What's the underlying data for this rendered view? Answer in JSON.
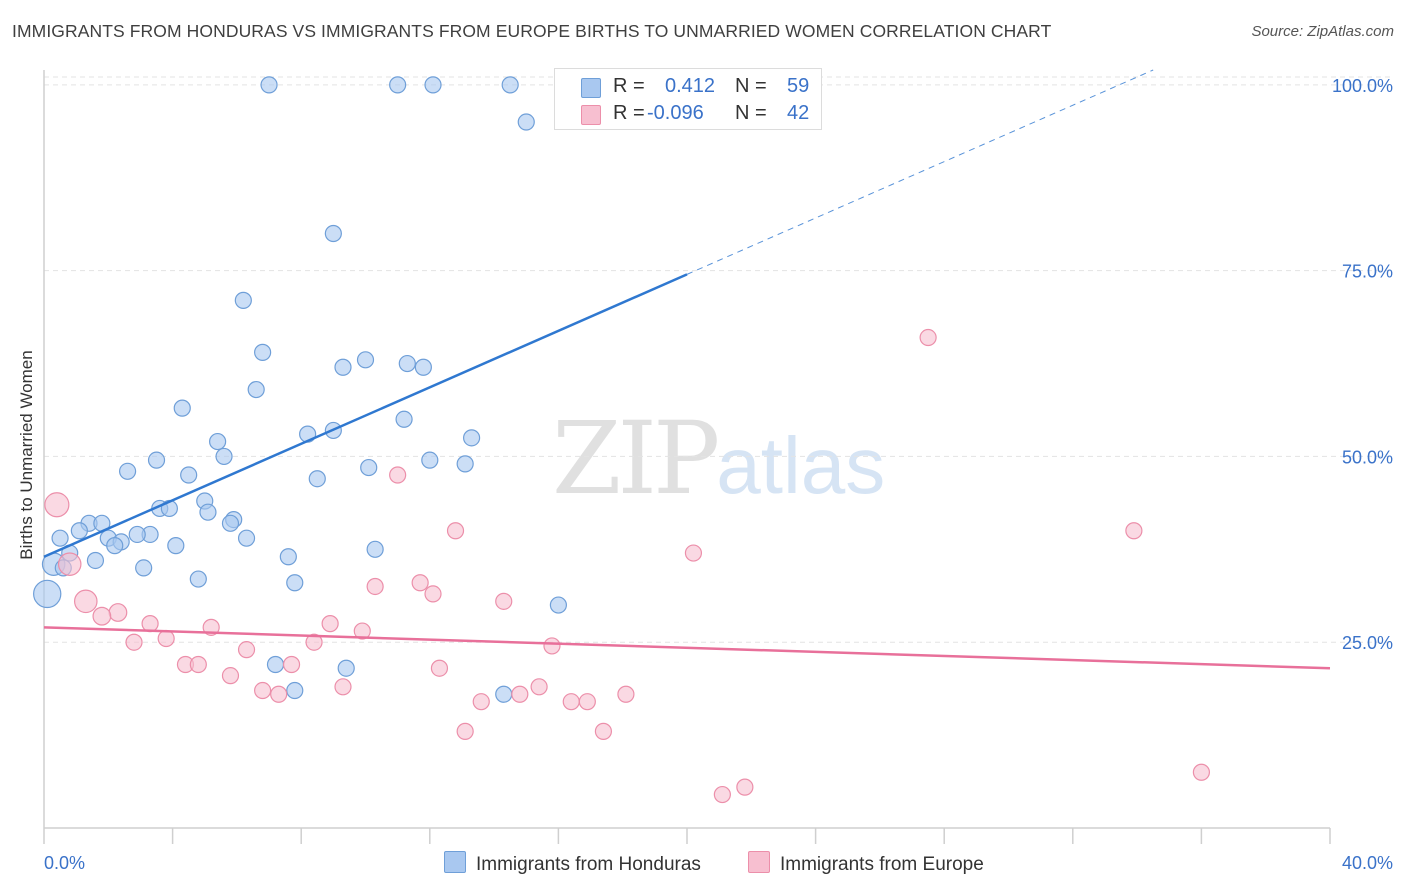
{
  "title": "IMMIGRANTS FROM HONDURAS VS IMMIGRANTS FROM EUROPE BIRTHS TO UNMARRIED WOMEN CORRELATION CHART",
  "source": "Source: ZipAtlas.com",
  "watermark": {
    "zip": "ZIP",
    "atlas": "atlas"
  },
  "legend_box": {
    "series1": {
      "r_label": "R =",
      "r_value": "0.412",
      "n_label": "N =",
      "n_value": "59"
    },
    "series2": {
      "r_label": "R =",
      "r_value": "-0.096",
      "n_label": "N =",
      "n_value": "42"
    }
  },
  "colors": {
    "honduras_fill": "#a9c8f0",
    "honduras_stroke": "#6f9fd8",
    "honduras_line": "#2f78d0",
    "europe_fill": "#f7bfd0",
    "europe_stroke": "#ec8faa",
    "europe_line": "#e8709a",
    "tick_label": "#3a72c9",
    "grid": "#e3e3e3"
  },
  "chart_data": {
    "type": "scatter",
    "title": "IMMIGRANTS FROM HONDURAS VS IMMIGRANTS FROM EUROPE BIRTHS TO UNMARRIED WOMEN CORRELATION CHART",
    "xlabel": "",
    "ylabel": "Births to Unmarried Women",
    "xlim": [
      0,
      40
    ],
    "ylim": [
      0,
      102
    ],
    "x_tick_labels": [
      "0.0%",
      "40.0%"
    ],
    "y_ticks": [
      25,
      50,
      75,
      100
    ],
    "y_tick_labels": [
      "25.0%",
      "50.0%",
      "75.0%",
      "100.0%"
    ],
    "grid": "horizontal dashed",
    "legend_position": "bottom-center",
    "series": [
      {
        "name": "Immigrants from Honduras",
        "r": 0.412,
        "n": 59,
        "trend": {
          "x": [
            0,
            20
          ],
          "y": [
            36.5,
            74.5
          ],
          "dashed_extension": {
            "x": [
              20,
              34.5
            ],
            "y": [
              74.5,
              102
            ]
          }
        },
        "points": [
          {
            "x": 7.0,
            "y": 100,
            "s": 1
          },
          {
            "x": 11.0,
            "y": 100,
            "s": 1
          },
          {
            "x": 12.1,
            "y": 100,
            "s": 1
          },
          {
            "x": 14.5,
            "y": 100,
            "s": 1
          },
          {
            "x": 15.0,
            "y": 95,
            "s": 1
          },
          {
            "x": 9.0,
            "y": 80,
            "s": 1
          },
          {
            "x": 6.2,
            "y": 71,
            "s": 1
          },
          {
            "x": 6.8,
            "y": 64,
            "s": 1
          },
          {
            "x": 10.0,
            "y": 63,
            "s": 1
          },
          {
            "x": 9.3,
            "y": 62,
            "s": 1
          },
          {
            "x": 11.3,
            "y": 62.5,
            "s": 1
          },
          {
            "x": 11.8,
            "y": 62,
            "s": 1
          },
          {
            "x": 6.6,
            "y": 59,
            "s": 1
          },
          {
            "x": 4.3,
            "y": 56.5,
            "s": 1
          },
          {
            "x": 11.2,
            "y": 55,
            "s": 1
          },
          {
            "x": 8.2,
            "y": 53,
            "s": 1
          },
          {
            "x": 9.0,
            "y": 53.5,
            "s": 1
          },
          {
            "x": 13.3,
            "y": 52.5,
            "s": 1
          },
          {
            "x": 5.4,
            "y": 52,
            "s": 1
          },
          {
            "x": 5.6,
            "y": 50,
            "s": 1
          },
          {
            "x": 3.5,
            "y": 49.5,
            "s": 1
          },
          {
            "x": 12.0,
            "y": 49.5,
            "s": 1
          },
          {
            "x": 13.1,
            "y": 49,
            "s": 1
          },
          {
            "x": 10.1,
            "y": 48.5,
            "s": 1
          },
          {
            "x": 2.6,
            "y": 48,
            "s": 1
          },
          {
            "x": 4.5,
            "y": 47.5,
            "s": 1
          },
          {
            "x": 8.5,
            "y": 47,
            "s": 1
          },
          {
            "x": 5.0,
            "y": 44,
            "s": 1
          },
          {
            "x": 3.6,
            "y": 43,
            "s": 1
          },
          {
            "x": 3.9,
            "y": 43,
            "s": 1
          },
          {
            "x": 5.1,
            "y": 42.5,
            "s": 1
          },
          {
            "x": 5.9,
            "y": 41.5,
            "s": 1
          },
          {
            "x": 5.8,
            "y": 41,
            "s": 1
          },
          {
            "x": 1.4,
            "y": 41,
            "s": 1
          },
          {
            "x": 1.8,
            "y": 41,
            "s": 1
          },
          {
            "x": 1.1,
            "y": 40,
            "s": 1
          },
          {
            "x": 3.3,
            "y": 39.5,
            "s": 1
          },
          {
            "x": 2.9,
            "y": 39.5,
            "s": 1
          },
          {
            "x": 0.5,
            "y": 39,
            "s": 1
          },
          {
            "x": 2.0,
            "y": 39,
            "s": 1
          },
          {
            "x": 6.3,
            "y": 39,
            "s": 1
          },
          {
            "x": 2.4,
            "y": 38.5,
            "s": 1
          },
          {
            "x": 2.2,
            "y": 38,
            "s": 1
          },
          {
            "x": 4.1,
            "y": 38,
            "s": 1
          },
          {
            "x": 0.8,
            "y": 37,
            "s": 1
          },
          {
            "x": 10.3,
            "y": 37.5,
            "s": 1
          },
          {
            "x": 7.6,
            "y": 36.5,
            "s": 1
          },
          {
            "x": 1.6,
            "y": 36,
            "s": 1
          },
          {
            "x": 0.3,
            "y": 35.5,
            "s": 1.4
          },
          {
            "x": 3.1,
            "y": 35,
            "s": 1
          },
          {
            "x": 4.8,
            "y": 33.5,
            "s": 1
          },
          {
            "x": 7.8,
            "y": 33,
            "s": 1
          },
          {
            "x": 0.1,
            "y": 31.5,
            "s": 1.7
          },
          {
            "x": 16.0,
            "y": 30,
            "s": 1
          },
          {
            "x": 7.2,
            "y": 22,
            "s": 1
          },
          {
            "x": 9.4,
            "y": 21.5,
            "s": 1
          },
          {
            "x": 7.8,
            "y": 18.5,
            "s": 1
          },
          {
            "x": 14.3,
            "y": 18,
            "s": 1
          },
          {
            "x": 0.6,
            "y": 35,
            "s": 1
          }
        ]
      },
      {
        "name": "Immigrants from Europe",
        "r": -0.096,
        "n": 42,
        "trend": {
          "x": [
            0,
            40
          ],
          "y": [
            27,
            21.5
          ]
        },
        "points": [
          {
            "x": 27.5,
            "y": 66,
            "s": 1
          },
          {
            "x": 11.0,
            "y": 47.5,
            "s": 1
          },
          {
            "x": 0.4,
            "y": 43.5,
            "s": 1.5
          },
          {
            "x": 12.8,
            "y": 40,
            "s": 1
          },
          {
            "x": 33.9,
            "y": 40,
            "s": 1
          },
          {
            "x": 20.2,
            "y": 37,
            "s": 1
          },
          {
            "x": 0.8,
            "y": 35.5,
            "s": 1.4
          },
          {
            "x": 11.7,
            "y": 33,
            "s": 1
          },
          {
            "x": 10.3,
            "y": 32.5,
            "s": 1
          },
          {
            "x": 12.1,
            "y": 31.5,
            "s": 1
          },
          {
            "x": 14.3,
            "y": 30.5,
            "s": 1
          },
          {
            "x": 1.3,
            "y": 30.5,
            "s": 1.4
          },
          {
            "x": 2.3,
            "y": 29,
            "s": 1.1
          },
          {
            "x": 1.8,
            "y": 28.5,
            "s": 1.1
          },
          {
            "x": 3.3,
            "y": 27.5,
            "s": 1
          },
          {
            "x": 8.9,
            "y": 27.5,
            "s": 1
          },
          {
            "x": 5.2,
            "y": 27,
            "s": 1
          },
          {
            "x": 9.9,
            "y": 26.5,
            "s": 1
          },
          {
            "x": 3.8,
            "y": 25.5,
            "s": 1
          },
          {
            "x": 2.8,
            "y": 25,
            "s": 1
          },
          {
            "x": 8.4,
            "y": 25,
            "s": 1
          },
          {
            "x": 15.8,
            "y": 24.5,
            "s": 1
          },
          {
            "x": 6.3,
            "y": 24,
            "s": 1
          },
          {
            "x": 4.4,
            "y": 22,
            "s": 1
          },
          {
            "x": 4.8,
            "y": 22,
            "s": 1
          },
          {
            "x": 7.7,
            "y": 22,
            "s": 1
          },
          {
            "x": 12.3,
            "y": 21.5,
            "s": 1
          },
          {
            "x": 5.8,
            "y": 20.5,
            "s": 1
          },
          {
            "x": 9.3,
            "y": 19,
            "s": 1
          },
          {
            "x": 15.4,
            "y": 19,
            "s": 1
          },
          {
            "x": 6.8,
            "y": 18.5,
            "s": 1
          },
          {
            "x": 7.3,
            "y": 18,
            "s": 1
          },
          {
            "x": 14.8,
            "y": 18,
            "s": 1
          },
          {
            "x": 18.1,
            "y": 18,
            "s": 1
          },
          {
            "x": 13.6,
            "y": 17,
            "s": 1
          },
          {
            "x": 16.4,
            "y": 17,
            "s": 1
          },
          {
            "x": 16.9,
            "y": 17,
            "s": 1
          },
          {
            "x": 13.1,
            "y": 13,
            "s": 1
          },
          {
            "x": 17.4,
            "y": 13,
            "s": 1
          },
          {
            "x": 36.0,
            "y": 7.5,
            "s": 1
          },
          {
            "x": 21.8,
            "y": 5.5,
            "s": 1
          },
          {
            "x": 21.1,
            "y": 4.5,
            "s": 1
          }
        ]
      }
    ]
  }
}
